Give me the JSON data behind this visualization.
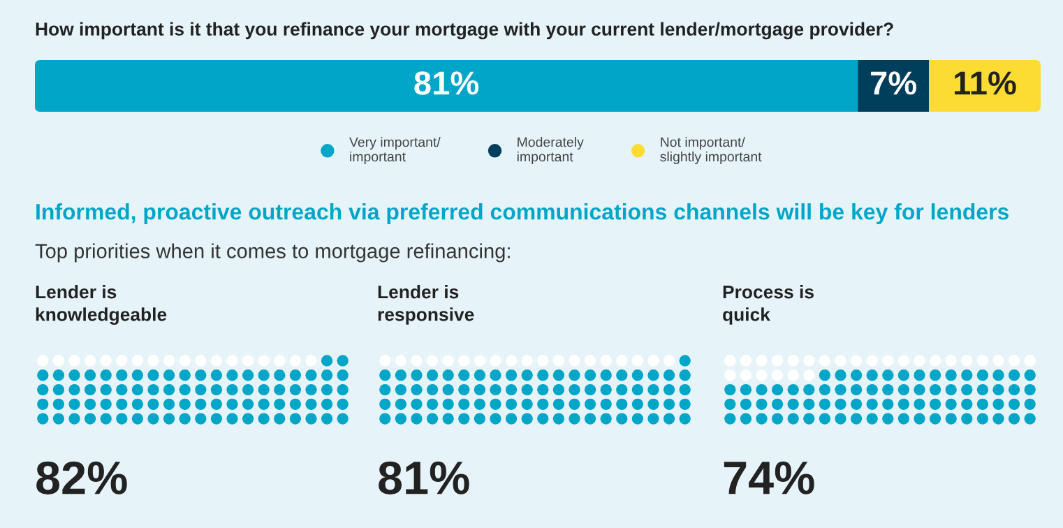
{
  "chart_data": [
    {
      "type": "bar",
      "orientation": "horizontal",
      "stacked": true,
      "title": "How important is it that you refinance your mortgage with your current lender/mortgage provider?",
      "categories": [
        null
      ],
      "legend": "bottom",
      "series": [
        {
          "name": "Very important/\nimportant",
          "color": "#00a6c8",
          "values": [
            81
          ],
          "value_labels": [
            "81%"
          ]
        },
        {
          "name": "Moderately\nimportant",
          "color": "#003f5c",
          "values": [
            7
          ],
          "value_labels": [
            "7%"
          ]
        },
        {
          "name": "Not important/\nslightly important",
          "color": "#fcdc33",
          "values": [
            11
          ],
          "value_labels": [
            "11%"
          ]
        }
      ]
    },
    {
      "type": "other",
      "annotations": [
        "Informed, proactive outreach via preferred communications channels will be key for lenders",
        "Top priorities when it comes to mortgage refinancing:"
      ],
      "title": "Lender is\nknowledgeable",
      "values": [
        82
      ],
      "value_labels": [
        "82%"
      ],
      "color": "#00a6c8"
    },
    {
      "type": "other",
      "title": "Lender is\nresponsive",
      "values": [
        81
      ],
      "value_labels": [
        "81%"
      ],
      "color": "#00a6c8"
    },
    {
      "type": "other",
      "title": "Process is\nquick",
      "values": [
        74
      ],
      "value_labels": [
        "74%"
      ],
      "color": "#00a6c8"
    }
  ]
}
